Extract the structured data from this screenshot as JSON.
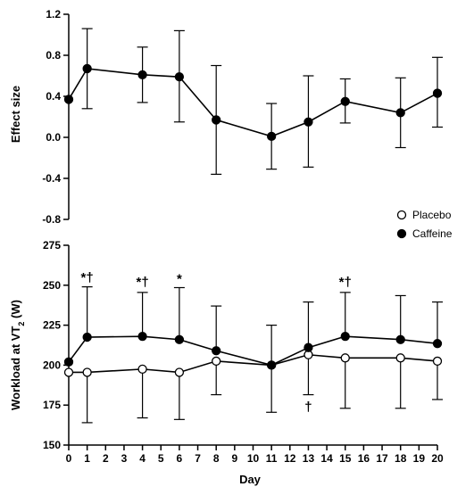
{
  "chart_data": [
    {
      "type": "line",
      "ylabel": "Effect size",
      "ylim": [
        -0.8,
        1.2
      ],
      "yticks": [
        "1.2",
        "0.8",
        "0.4",
        "0.0",
        "-0.4",
        "-0.8"
      ],
      "x": [
        0,
        1,
        4,
        6,
        8,
        11,
        13,
        15,
        18,
        20
      ],
      "series": [
        {
          "name": "",
          "marker": "filled-circle",
          "values": [
            0.37,
            0.67,
            0.61,
            0.59,
            0.17,
            0.01,
            0.15,
            0.35,
            0.24,
            0.43
          ],
          "err_upper": [
            0.37,
            1.06,
            0.88,
            1.04,
            0.7,
            0.33,
            0.6,
            0.57,
            0.58,
            0.78
          ],
          "err_lower": [
            0.37,
            0.28,
            0.34,
            0.15,
            -0.36,
            -0.31,
            -0.29,
            0.14,
            -0.1,
            0.1
          ]
        }
      ]
    },
    {
      "type": "line",
      "xlabel": "Day",
      "ylabel_main": "Workload at VT",
      "ylabel_sub": "2",
      "ylabel_unit": " (W)",
      "ylim": [
        150,
        275
      ],
      "yticks": [
        "275",
        "250",
        "225",
        "200",
        "175",
        "150"
      ],
      "xlim": [
        0,
        20
      ],
      "xticks": [
        "0",
        "1",
        "2",
        "3",
        "4",
        "5",
        "6",
        "7",
        "8",
        "9",
        "10",
        "11",
        "12",
        "13",
        "14",
        "15",
        "16",
        "17",
        "18",
        "19",
        "20"
      ],
      "x": [
        0,
        1,
        4,
        6,
        8,
        11,
        13,
        15,
        18,
        20
      ],
      "legend_position": "top-right",
      "series": [
        {
          "name": "Placebo",
          "marker": "open-circle",
          "values": [
            195.5,
            195.5,
            197.5,
            195.5,
            202.5,
            200,
            206.5,
            204.5,
            204.5,
            202.5
          ],
          "err_upper": [
            195.5,
            195.5,
            197.5,
            195.5,
            202.5,
            225,
            206.5,
            204.5,
            204.5,
            202.5
          ],
          "err_lower": [
            195.5,
            164,
            167,
            166,
            181.5,
            170.5,
            181.5,
            173,
            173,
            178.5
          ]
        },
        {
          "name": "Caffeine",
          "marker": "filled-circle",
          "values": [
            202,
            217.5,
            218,
            216,
            209,
            200,
            211,
            218,
            216,
            213.5
          ],
          "err_upper": [
            202,
            249,
            245.5,
            248.5,
            237,
            200,
            239.5,
            245.5,
            243.5,
            239.5
          ],
          "err_lower": [
            202,
            217.5,
            218,
            216,
            209,
            200,
            211,
            218,
            216,
            213.5
          ]
        }
      ],
      "annotations": [
        {
          "text": "*†",
          "x": 1,
          "y": 255
        },
        {
          "text": "*†",
          "x": 4,
          "y": 252
        },
        {
          "text": "*",
          "x": 6,
          "y": 254
        },
        {
          "text": "*†",
          "x": 15,
          "y": 252
        },
        {
          "text": "†",
          "x": 13,
          "y": 174
        }
      ]
    }
  ]
}
